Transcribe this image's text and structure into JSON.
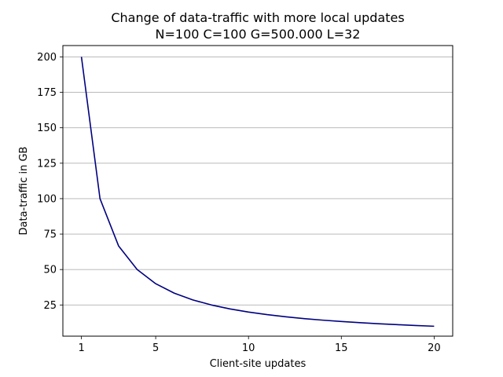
{
  "chart_data": {
    "type": "line",
    "title": "Change of data-traffic with more local updates",
    "subtitle": "N=100 C=100 G=500.000 L=32",
    "xlabel": "Client-site updates",
    "ylabel": "Data-traffic in GB",
    "xlim": [
      0,
      21
    ],
    "ylim": [
      3,
      208
    ],
    "xticks": [
      1,
      5,
      10,
      15,
      20
    ],
    "yticks": [
      25,
      50,
      75,
      100,
      125,
      150,
      175,
      200
    ],
    "grid": "horizontal",
    "series": [
      {
        "color": "#000080",
        "x": [
          1,
          2,
          3,
          4,
          5,
          6,
          7,
          8,
          9,
          10,
          11,
          12,
          13,
          14,
          15,
          16,
          17,
          18,
          19,
          20
        ],
        "y": [
          200,
          100,
          66.67,
          50,
          40,
          33.33,
          28.57,
          25,
          22.22,
          20,
          18.18,
          16.67,
          15.38,
          14.29,
          13.33,
          12.5,
          11.76,
          11.11,
          10.53,
          10
        ]
      }
    ]
  }
}
